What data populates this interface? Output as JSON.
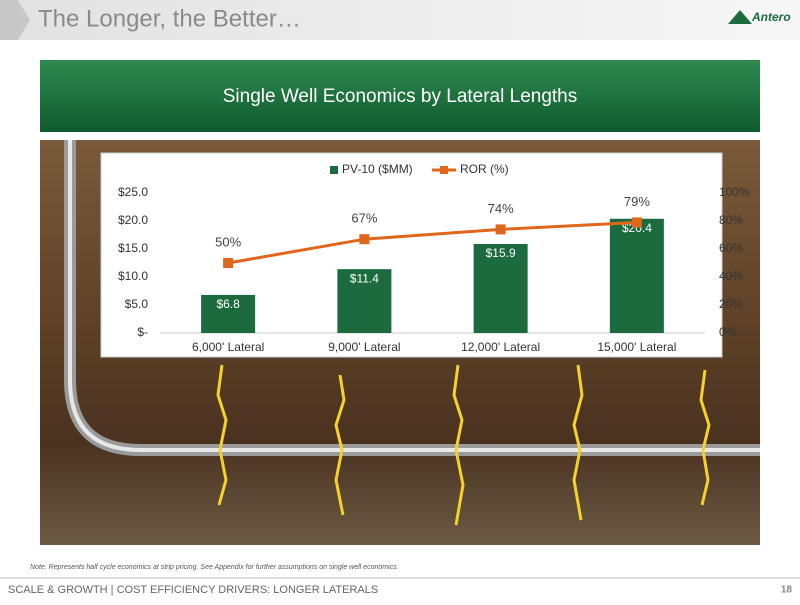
{
  "header": {
    "title": "The Longer, the Better…",
    "logo": "Antero"
  },
  "chart_data": {
    "type": "bar-line",
    "title": "Single Well Economics by Lateral Lengths",
    "categories": [
      "6,000' Lateral",
      "9,000' Lateral",
      "12,000' Lateral",
      "15,000' Lateral"
    ],
    "series": [
      {
        "name": "PV-10 ($MM)",
        "type": "bar",
        "color": "#1b6b3f",
        "values": [
          6.8,
          11.4,
          15.9,
          20.4
        ],
        "value_labels": [
          "$6.8",
          "$11.4",
          "$15.9",
          "$20.4"
        ]
      },
      {
        "name": "ROR (%)",
        "type": "line",
        "axis": "y2",
        "color": "#e0661c",
        "values": [
          50,
          67,
          74,
          79
        ],
        "value_labels": [
          "50%",
          "67%",
          "74%",
          "79%"
        ]
      }
    ],
    "ylim": [
      0,
      25
    ],
    "yticks": [
      {
        "value": 0,
        "label": "$-"
      },
      {
        "value": 5,
        "label": "$5.0"
      },
      {
        "value": 10,
        "label": "$10.0"
      },
      {
        "value": 15,
        "label": "$15.0"
      },
      {
        "value": 20,
        "label": "$20.0"
      },
      {
        "value": 25,
        "label": "$25.0"
      }
    ],
    "y2lim": [
      0,
      100
    ],
    "y2ticks": [
      {
        "value": 0,
        "label": "0%"
      },
      {
        "value": 20,
        "label": "20%"
      },
      {
        "value": 40,
        "label": "40%"
      },
      {
        "value": 60,
        "label": "60%"
      },
      {
        "value": 80,
        "label": "80%"
      },
      {
        "value": 100,
        "label": "100%"
      }
    ],
    "legend": "top"
  },
  "note": "Note: Represents half cycle economics at strip pricing.  See Appendix for further assumptions on single well economics.",
  "footer": "SCALE & GROWTH | COST EFFICIENCY DRIVERS: LONGER LATERALS",
  "page_number": "18"
}
